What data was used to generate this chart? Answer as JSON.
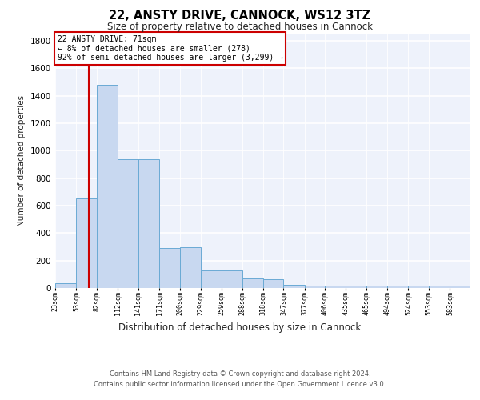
{
  "title1": "22, ANSTY DRIVE, CANNOCK, WS12 3TZ",
  "title2": "Size of property relative to detached houses in Cannock",
  "xlabel": "Distribution of detached houses by size in Cannock",
  "ylabel": "Number of detached properties",
  "footer1": "Contains HM Land Registry data © Crown copyright and database right 2024.",
  "footer2": "Contains public sector information licensed under the Open Government Licence v3.0.",
  "annotation_title": "22 ANSTY DRIVE: 71sqm",
  "annotation_line1": "← 8% of detached houses are smaller (278)",
  "annotation_line2": "92% of semi-detached houses are larger (3,299) →",
  "property_size": 71,
  "bar_edges": [
    23,
    53,
    82,
    112,
    141,
    171,
    200,
    229,
    259,
    288,
    318,
    347,
    377,
    406,
    435,
    465,
    494,
    524,
    553,
    583,
    612
  ],
  "bar_heights": [
    35,
    650,
    1480,
    940,
    940,
    290,
    295,
    130,
    130,
    70,
    65,
    25,
    20,
    20,
    20,
    15,
    15,
    15,
    15,
    15
  ],
  "bar_color": "#c8d8f0",
  "bar_edge_color": "#6aaad4",
  "red_line_color": "#cc0000",
  "annotation_box_color": "#cc0000",
  "background_color": "#eef2fb",
  "ylim": [
    0,
    1850
  ],
  "yticks": [
    0,
    200,
    400,
    600,
    800,
    1000,
    1200,
    1400,
    1600,
    1800
  ],
  "figsize": [
    6.0,
    5.0
  ],
  "dpi": 100
}
